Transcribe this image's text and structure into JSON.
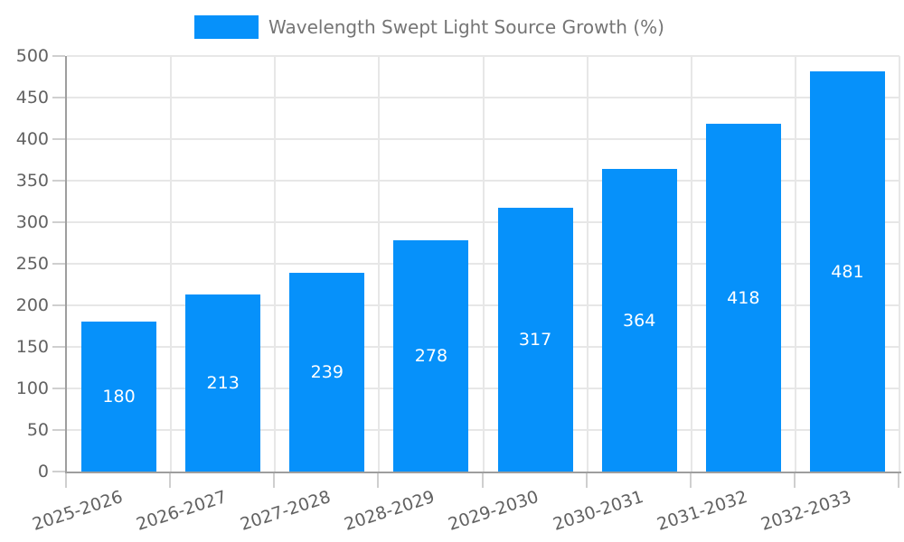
{
  "legend": {
    "label": "Wavelength Swept Light Source Growth (%)"
  },
  "chart_data": {
    "type": "bar",
    "title": "Wavelength Swept Light Source Growth (%)",
    "categories": [
      "2025-2026",
      "2026-2027",
      "2027-2028",
      "2028-2029",
      "2029-2030",
      "2030-2031",
      "2031-2032",
      "2032-2033"
    ],
    "values": [
      180,
      213,
      239,
      278,
      317,
      364,
      418,
      481
    ],
    "series": [
      {
        "name": "Wavelength Swept Light Source Growth (%)",
        "values": [
          180,
          213,
          239,
          278,
          317,
          364,
          418,
          481
        ]
      }
    ],
    "xlabel": "",
    "ylabel": "",
    "ylim": [
      0,
      500
    ],
    "ytick_step": 50,
    "yticks": [
      0,
      50,
      100,
      150,
      200,
      250,
      300,
      350,
      400,
      450,
      500
    ],
    "grid": true,
    "legend_position": "top",
    "x_tick_rotation_deg": -18,
    "value_labels_inside_bars": true,
    "colors": {
      "bar": "#0691fa",
      "value_label": "#ffffff",
      "axis": "#9e9e9e",
      "grid": "#e7e7e7",
      "tick": "#cfcfcf",
      "tick_label": "#616161",
      "legend_text": "#757575",
      "background": "#ffffff"
    }
  }
}
